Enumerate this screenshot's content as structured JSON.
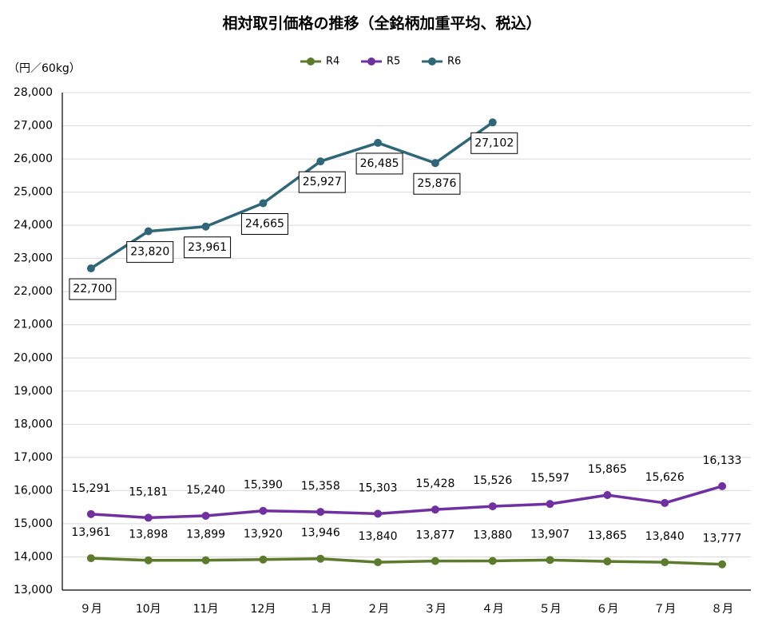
{
  "chart_data": {
    "type": "line",
    "title": "相対取引価格の推移（全銘柄加重平均、税込）",
    "y_label": "（円／60kg）",
    "categories": [
      "９月",
      "10月",
      "11月",
      "12月",
      "１月",
      "２月",
      "３月",
      "４月",
      "５月",
      "６月",
      "７月",
      "８月"
    ],
    "series": [
      {
        "name": "R4",
        "color": "#5d7b2c",
        "values": [
          13961,
          13898,
          13899,
          13920,
          13946,
          13840,
          13877,
          13880,
          13907,
          13865,
          13840,
          13777
        ],
        "value_labels": [
          "13,961",
          "13,898",
          "13,899",
          "13,920",
          "13,946",
          "13,840",
          "13,877",
          "13,880",
          "13,907",
          "13,865",
          "13,840",
          "13,777"
        ]
      },
      {
        "name": "R5",
        "color": "#7030a0",
        "values": [
          15291,
          15181,
          15240,
          15390,
          15358,
          15303,
          15428,
          15526,
          15597,
          15865,
          15626,
          16133
        ],
        "value_labels": [
          "15,291",
          "15,181",
          "15,240",
          "15,390",
          "15,358",
          "15,303",
          "15,428",
          "15,526",
          "15,597",
          "15,865",
          "15,626",
          "16,133"
        ]
      },
      {
        "name": "R6",
        "color": "#2f6778",
        "values": [
          22700,
          23820,
          23961,
          24665,
          25927,
          26485,
          25876,
          27102,
          null,
          null,
          null,
          null
        ],
        "value_labels": [
          "22,700",
          "23,820",
          "23,961",
          "24,665",
          "25,927",
          "26,485",
          "25,876",
          "27,102",
          null,
          null,
          null,
          null
        ]
      }
    ],
    "ylim": [
      13000,
      28000
    ],
    "yticks": [
      {
        "value": 13000,
        "label": "13,000"
      },
      {
        "value": 14000,
        "label": "14,000"
      },
      {
        "value": 15000,
        "label": "15,000"
      },
      {
        "value": 16000,
        "label": "16,000"
      },
      {
        "value": 17000,
        "label": "17,000"
      },
      {
        "value": 18000,
        "label": "18,000"
      },
      {
        "value": 19000,
        "label": "19,000"
      },
      {
        "value": 20000,
        "label": "20,000"
      },
      {
        "value": 21000,
        "label": "21,000"
      },
      {
        "value": 22000,
        "label": "22,000"
      },
      {
        "value": 23000,
        "label": "23,000"
      },
      {
        "value": 24000,
        "label": "24,000"
      },
      {
        "value": 25000,
        "label": "25,000"
      },
      {
        "value": 26000,
        "label": "26,000"
      },
      {
        "value": 27000,
        "label": "27,000"
      },
      {
        "value": 28000,
        "label": "28,000"
      }
    ],
    "grid": true,
    "legend": "top"
  }
}
